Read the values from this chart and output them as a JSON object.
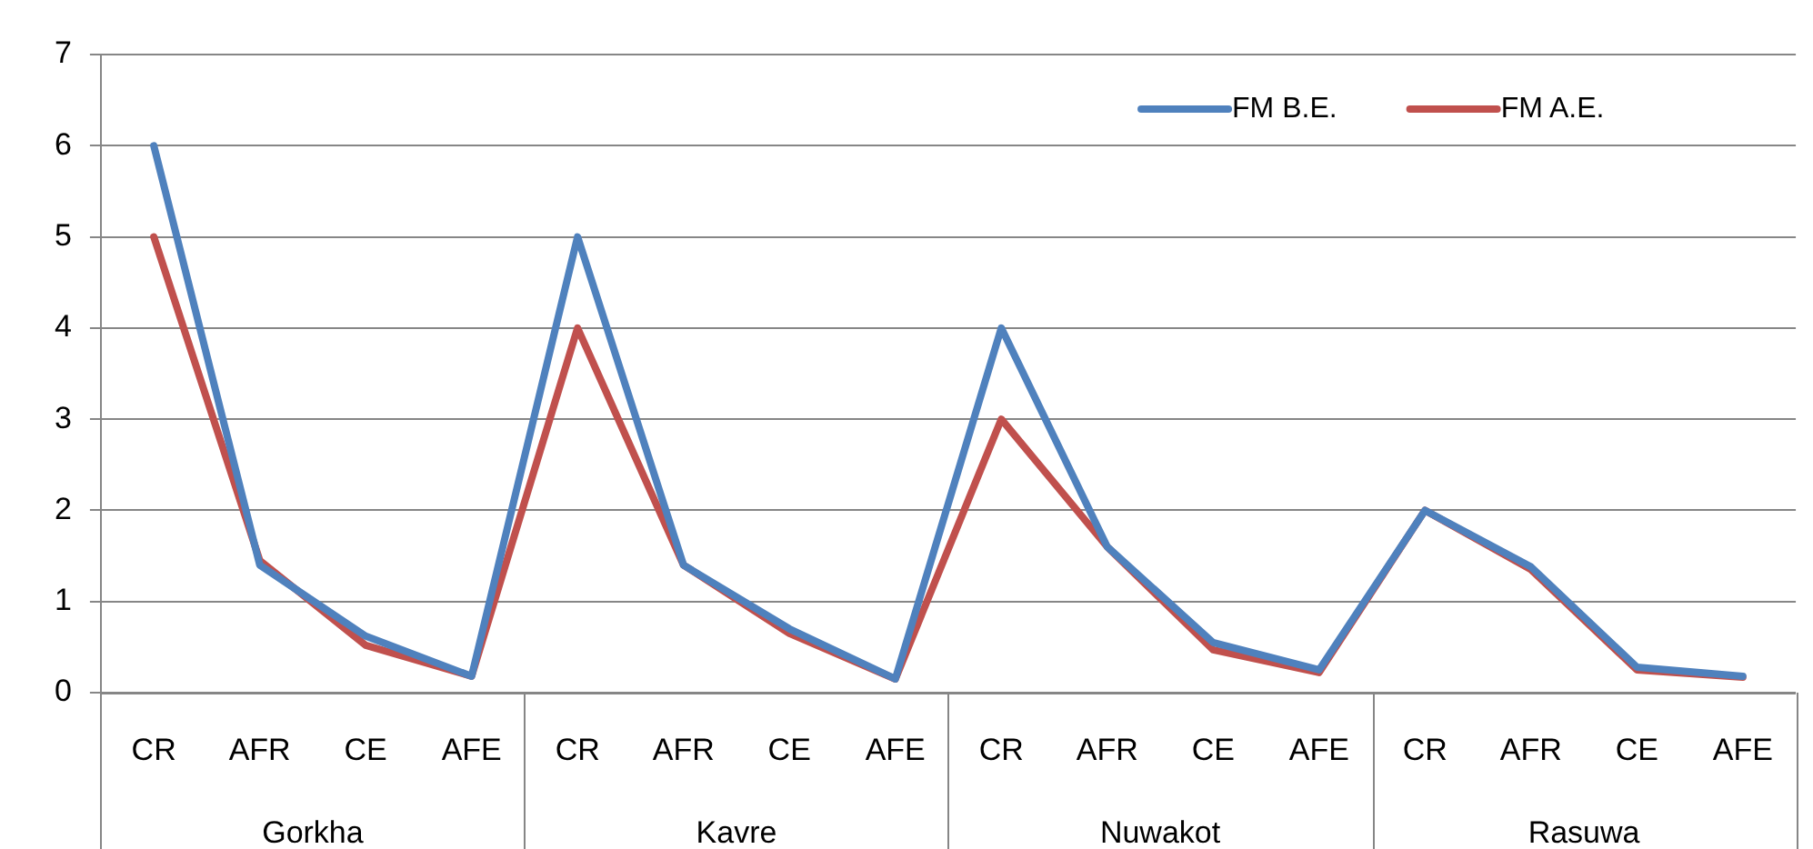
{
  "chart_data": {
    "type": "line",
    "categories": [
      "CR",
      "AFR",
      "CE",
      "AFE",
      "CR",
      "AFR",
      "CE",
      "AFE",
      "CR",
      "AFR",
      "CE",
      "AFE",
      "CR",
      "AFR",
      "CE",
      "AFE"
    ],
    "annotations": [
      "Gorkha",
      "Kavre",
      "Nuwakot",
      "Rasuwa"
    ],
    "series": [
      {
        "name": "FM B.E.",
        "color": "#4f81bd",
        "values": [
          6,
          1.4,
          0.62,
          0.18,
          5,
          1.4,
          0.7,
          0.15,
          4,
          1.6,
          0.55,
          0.25,
          2,
          1.38,
          0.28,
          0.18
        ]
      },
      {
        "name": "FM A.E.",
        "color": "#c0504d",
        "values": [
          5,
          1.45,
          0.52,
          0.18,
          4,
          1.4,
          0.65,
          0.15,
          3,
          1.6,
          0.47,
          0.22,
          2,
          1.35,
          0.25,
          0.17
        ]
      }
    ],
    "ylim": [
      0,
      7
    ],
    "yticks": [
      0,
      1,
      2,
      3,
      4,
      5,
      6,
      7
    ],
    "grid": "y",
    "legend": "top right",
    "marker": "none",
    "line_style": "solid"
  }
}
